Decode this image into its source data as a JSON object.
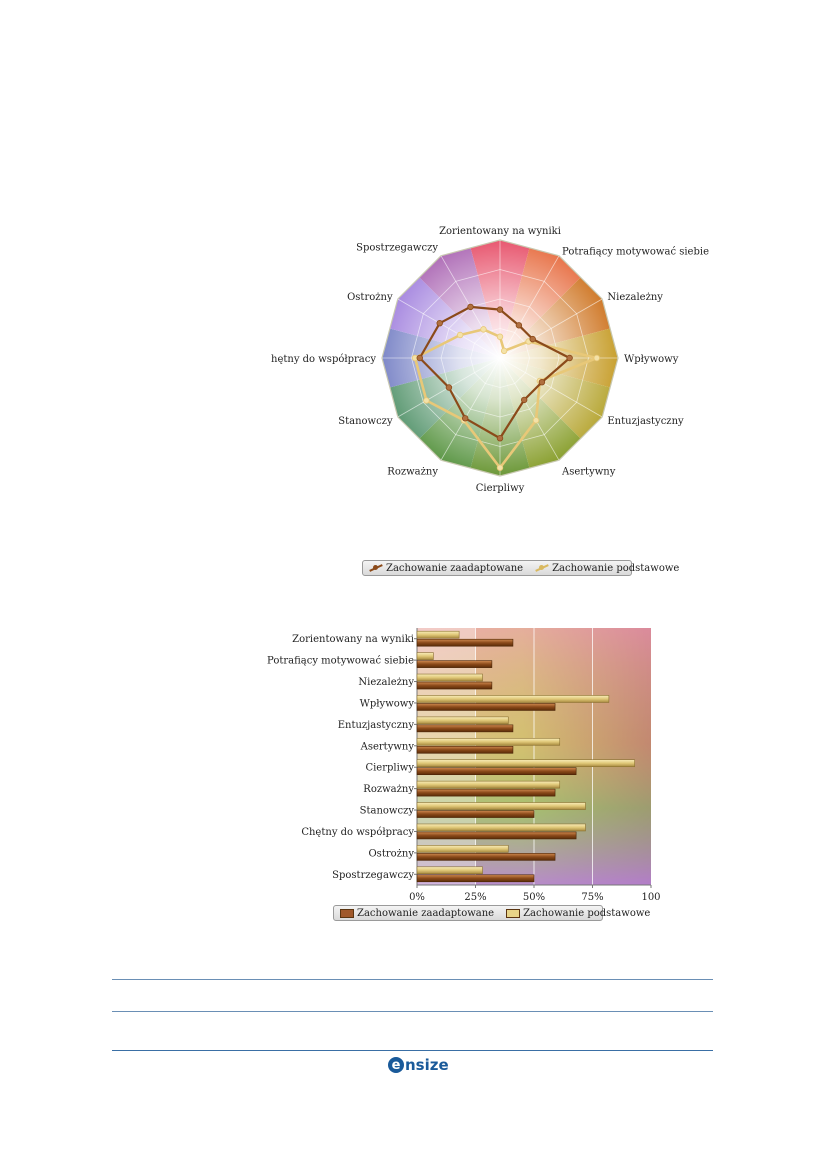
{
  "chart_data": [
    {
      "type": "radar",
      "categories": [
        "Zorientowany na wyniki",
        "Potrafiący motywować siebie",
        "Niezależny",
        "Wpływowy",
        "Entuzjastyczny",
        "Asertywny",
        "Cierpliwy",
        "Rozważny",
        "Stanowczy",
        "Chętny do współpracy",
        "Ostrożny",
        "Spostrzegawczy"
      ],
      "display_labels": [
        "Zorientowany na wyniki",
        "Potrafiący motywować siebie",
        "Niezależny",
        "Wpływowy",
        "Entuzjastyczny",
        "Asertywny",
        "Cierpliwy",
        "Rozważny",
        "Stanowczy",
        "hętny do współpracy",
        "Ostrożny",
        "Spostrzegawczy"
      ],
      "series": [
        {
          "name": "Zachowanie zaadaptowane",
          "values": [
            41,
            32,
            32,
            59,
            41,
            41,
            68,
            59,
            50,
            68,
            59,
            50
          ],
          "color": "#8b4a1a"
        },
        {
          "name": "Zachowanie podstawowe",
          "values": [
            18,
            7,
            28,
            82,
            39,
            61,
            93,
            61,
            72,
            72,
            39,
            28
          ],
          "color": "#e8c878"
        }
      ],
      "rlim": [
        0,
        100
      ],
      "grid": true,
      "legend": "bottom"
    },
    {
      "type": "bar",
      "orientation": "horizontal",
      "categories": [
        "Zorientowany na wyniki",
        "Potrafiący motywować siebie",
        "Niezależny",
        "Wpływowy",
        "Entuzjastyczny",
        "Asertywny",
        "Cierpliwy",
        "Rozważny",
        "Stanowczy",
        "Chętny do współpracy",
        "Ostrożny",
        "Spostrzegawczy"
      ],
      "series": [
        {
          "name": "Zachowanie zaadaptowane",
          "values": [
            41,
            32,
            32,
            59,
            41,
            41,
            68,
            59,
            50,
            68,
            59,
            50
          ],
          "color": "#8b4a1a"
        },
        {
          "name": "Zachowanie podstawowe",
          "values": [
            18,
            7,
            28,
            82,
            39,
            61,
            93,
            61,
            72,
            72,
            39,
            28
          ],
          "color": "#e8d488"
        }
      ],
      "xticks": [
        "0%",
        "25%",
        "50%",
        "75%",
        "100"
      ],
      "xlim": [
        0,
        100
      ],
      "grid": true,
      "legend": "bottom"
    }
  ],
  "legend": {
    "adapted": "Zachowanie zaadaptowane",
    "basic": "Zachowanie podstawowe"
  },
  "footer": {
    "logo_text": "nsize",
    "logo_mark": "e"
  },
  "colors": {
    "adapted": "#8b4a1a",
    "basic": "#e8c878",
    "rule": "#6a8fb5"
  }
}
